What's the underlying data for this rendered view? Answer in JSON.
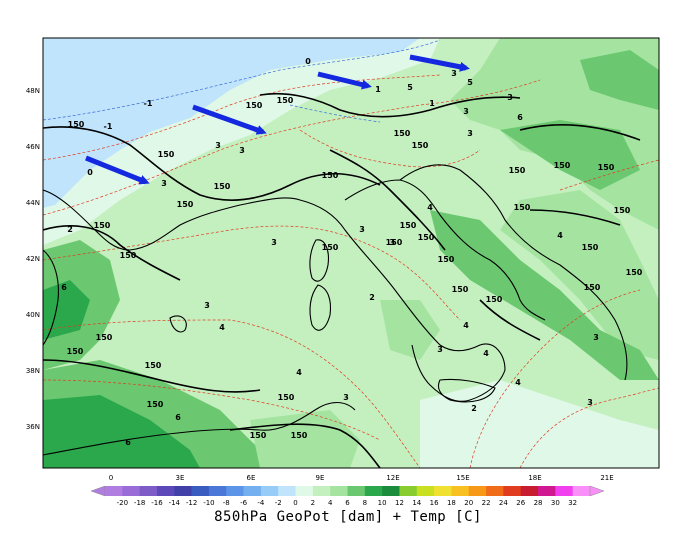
{
  "title": "850hPa GeoPot [dam] + Temp [C]",
  "lat_labels": [
    "48N",
    "46N",
    "44N",
    "42N",
    "40N",
    "38N",
    "36N"
  ],
  "lon_labels": [
    "0",
    "3E",
    "6E",
    "9E",
    "12E",
    "15E",
    "18E",
    "21E"
  ],
  "colorbar": {
    "ticks": [
      "-20",
      "-18",
      "-16",
      "-14",
      "-12",
      "-10",
      "-8",
      "-6",
      "-4",
      "-2",
      "0",
      "2",
      "4",
      "6",
      "8",
      "10",
      "12",
      "14",
      "16",
      "18",
      "20",
      "22",
      "24",
      "26",
      "28",
      "30",
      "32"
    ],
    "colors": [
      "#b07ee0",
      "#9a6cd8",
      "#7d5cc8",
      "#5c48b8",
      "#4040a8",
      "#3a5cc0",
      "#4b78d8",
      "#5c94e8",
      "#74b0f0",
      "#98ccf8",
      "#c0e4fc",
      "#e0f8e8",
      "#c4f0c0",
      "#a4e4a0",
      "#6cc870",
      "#2ca84c",
      "#1a8c3c",
      "#88cc30",
      "#c8e020",
      "#f0e030",
      "#f8c020",
      "#f89818",
      "#f06c18",
      "#e03c20",
      "#c81c30",
      "#d01890",
      "#f040f0",
      "#f890f8"
    ]
  },
  "contour_labels": [
    "150",
    "150",
    "150",
    "150",
    "150",
    "150",
    "150",
    "150",
    "150",
    "150",
    "150",
    "150",
    "150",
    "150",
    "150",
    "150",
    "150",
    "150",
    "150",
    "150",
    "150",
    "150",
    "150",
    "150",
    "150",
    "150",
    "150",
    "150",
    "150",
    "150",
    "150",
    "150",
    "150"
  ],
  "isotherm_labels": [
    "0",
    "-1",
    "-1",
    "0",
    "1",
    "1",
    "2",
    "2",
    "2",
    "3",
    "3",
    "3",
    "3",
    "3",
    "3",
    "3",
    "3",
    "3",
    "3",
    "3",
    "3",
    "3",
    "3",
    "3",
    "4",
    "4",
    "4",
    "4",
    "4",
    "4",
    "4",
    "5",
    "5",
    "6",
    "6",
    "6",
    "6"
  ],
  "fill_colors": {
    "cold_sea": "#c0e4fc",
    "light": "#e0f8e8",
    "mid": "#c4f0c0",
    "warm": "#a4e4a0",
    "warmer": "#6cc870",
    "dark": "#2ca84c"
  },
  "arrows_count_visible": 4
}
